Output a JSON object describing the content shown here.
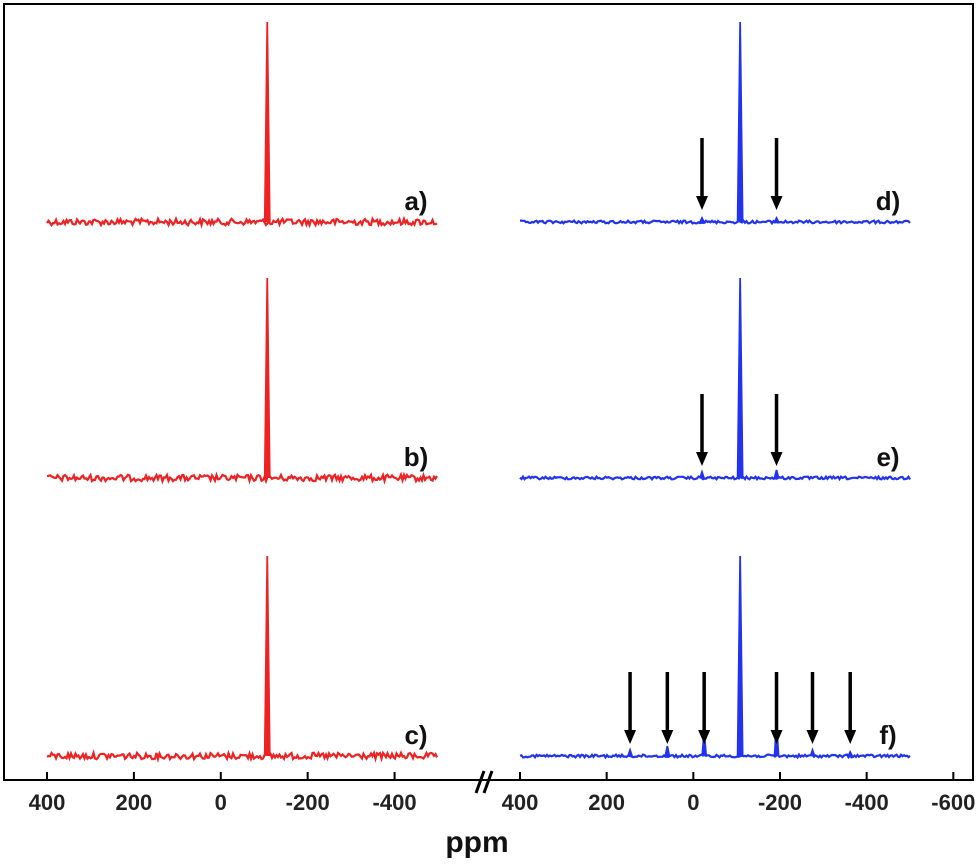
{
  "chart_data": {
    "type": "line",
    "xlabel": "ppm",
    "x_axis_break": true,
    "x_reversed": true,
    "x_ticks_left": [
      400,
      200,
      0,
      -200,
      -400
    ],
    "x_ticks_right": [
      400,
      200,
      0,
      -200,
      -400,
      -600
    ],
    "x_range_left": [
      400,
      -500
    ],
    "x_range_right": [
      400,
      -500
    ],
    "colors": {
      "left": "#ee2222",
      "right": "#2233ee",
      "arrow": "#000000"
    },
    "series": [
      {
        "name": "a)",
        "column": "left",
        "peaks": [
          {
            "x": -107,
            "height": 1.0
          }
        ],
        "arrows": []
      },
      {
        "name": "b)",
        "column": "left",
        "peaks": [
          {
            "x": -107,
            "height": 1.0
          }
        ],
        "arrows": []
      },
      {
        "name": "c)",
        "column": "left",
        "peaks": [
          {
            "x": -107,
            "height": 1.0
          },
          {
            "x": -107,
            "height": 0.58
          }
        ],
        "arrows": []
      },
      {
        "name": "d)",
        "column": "right",
        "peaks": [
          {
            "x": -108,
            "height": 1.0
          },
          {
            "x": -20,
            "height": 0.02
          },
          {
            "x": -192,
            "height": 0.02
          }
        ],
        "arrows": [
          -20,
          -192
        ]
      },
      {
        "name": "e)",
        "column": "right",
        "peaks": [
          {
            "x": -108,
            "height": 1.0
          },
          {
            "x": -20,
            "height": 0.03
          },
          {
            "x": -192,
            "height": 0.04
          }
        ],
        "arrows": [
          -20,
          -192
        ]
      },
      {
        "name": "f)",
        "column": "right",
        "peaks": [
          {
            "x": -108,
            "height": 1.0
          },
          {
            "x": 146,
            "height": 0.03
          },
          {
            "x": 60,
            "height": 0.05
          },
          {
            "x": -25,
            "height": 0.12
          },
          {
            "x": -192,
            "height": 0.17
          },
          {
            "x": -275,
            "height": 0.03
          },
          {
            "x": -362,
            "height": 0.02
          }
        ],
        "arrows": [
          146,
          60,
          -25,
          -192,
          -275,
          -362
        ]
      }
    ]
  }
}
